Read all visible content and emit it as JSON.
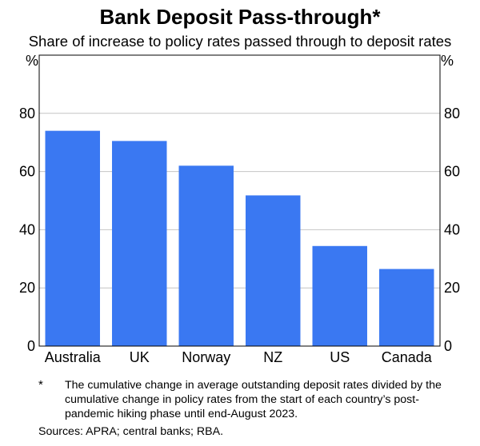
{
  "chart_data": {
    "type": "bar",
    "title": "Bank Deposit Pass-through*",
    "subtitle": "Share of increase to policy rates passed through to deposit rates",
    "ylabel_left": "%",
    "ylabel_right": "%",
    "categories": [
      "Australia",
      "UK",
      "Norway",
      "NZ",
      "US",
      "Canada"
    ],
    "values": [
      74,
      70.5,
      62,
      51.8,
      34.4,
      26.5
    ],
    "ylim": [
      0,
      100
    ],
    "yticks": [
      0,
      20,
      40,
      60,
      80
    ],
    "grid": true,
    "bar_color": "#3A78F2"
  },
  "footnote": {
    "marker": "*",
    "text": "The cumulative change in average outstanding deposit rates divided by the cumulative change in policy rates from the start of each country’s post-pandemic hiking phase until end-August 2023."
  },
  "sources": "Sources: APRA; central banks; RBA."
}
